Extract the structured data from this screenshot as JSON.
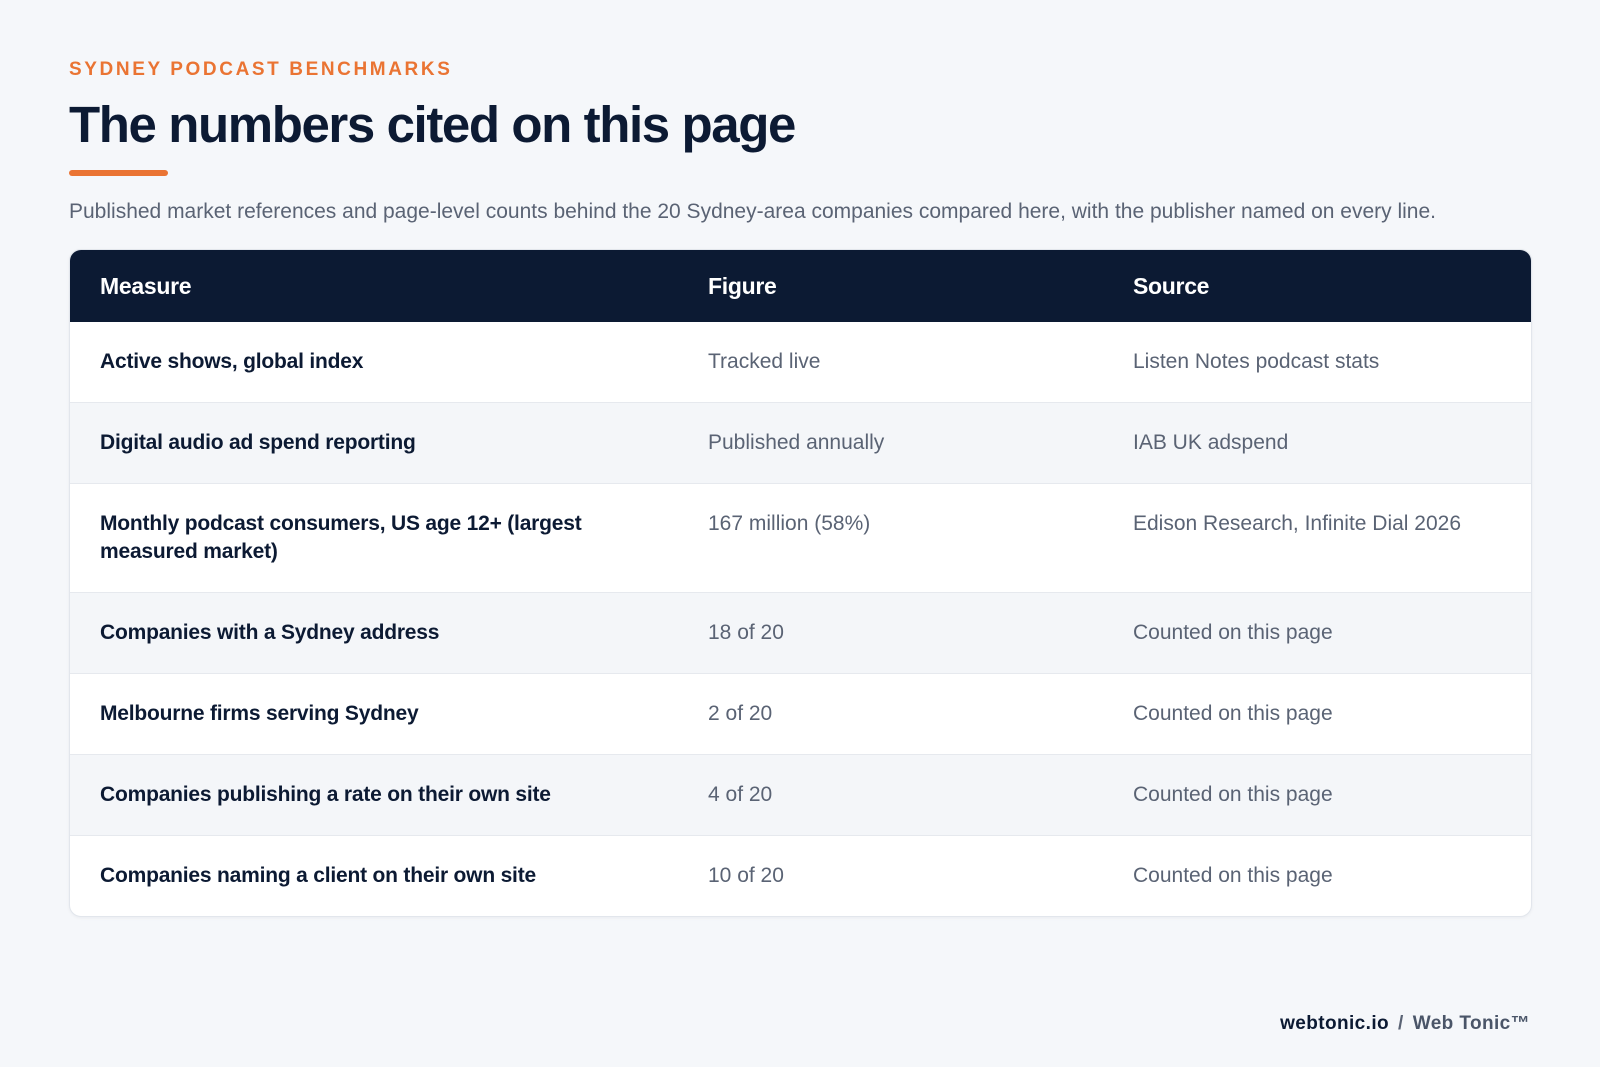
{
  "header": {
    "eyebrow": "SYDNEY PODCAST BENCHMARKS",
    "title": "The numbers cited on this page",
    "lede": "Published market references and page-level counts behind the 20 Sydney-area companies compared here, with the publisher named on every line."
  },
  "table": {
    "columns": [
      "Measure",
      "Figure",
      "Source"
    ],
    "rows": [
      {
        "measure": "Active shows, global index",
        "figure": "Tracked live",
        "source": "Listen Notes podcast stats"
      },
      {
        "measure": "Digital audio ad spend reporting",
        "figure": "Published annually",
        "source": "IAB UK adspend"
      },
      {
        "measure": "Monthly podcast consumers, US age 12+ (largest measured market)",
        "figure": "167 million (58%)",
        "source": "Edison Research, Infinite Dial 2026"
      },
      {
        "measure": "Companies with a Sydney address",
        "figure": "18 of 20",
        "source": "Counted on this page"
      },
      {
        "measure": "Melbourne firms serving Sydney",
        "figure": "2 of 20",
        "source": "Counted on this page"
      },
      {
        "measure": "Companies publishing a rate on their own site",
        "figure": "4 of 20",
        "source": "Counted on this page"
      },
      {
        "measure": "Companies naming a client on their own site",
        "figure": "10 of 20",
        "source": "Counted on this page"
      }
    ]
  },
  "footer": {
    "domain": "webtonic.io",
    "separator": "/",
    "brand": "Web Tonic™"
  },
  "colors": {
    "accent": "#ea7433",
    "navy": "#0c1a33",
    "muted_text": "#5a6374",
    "background": "#f5f7fa"
  }
}
